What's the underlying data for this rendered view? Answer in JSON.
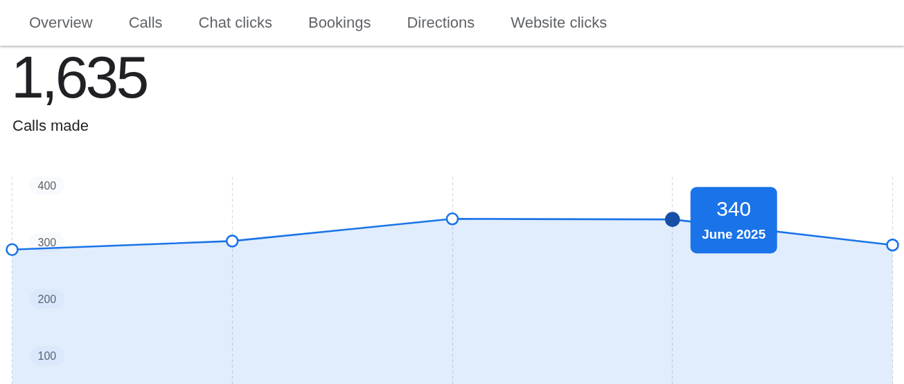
{
  "chart_data": {
    "type": "area",
    "title": "1,635",
    "subtitle": "Calls made",
    "annotations": [
      "Overview",
      "Calls",
      "Chat clicks",
      "Bookings",
      "Directions",
      "Website clicks"
    ],
    "categories": [
      null,
      null,
      null,
      null,
      null
    ],
    "series": [
      {
        "color": "#1a73e8",
        "values": [
          287,
          302,
          341,
          340,
          295
        ],
        "value_labels": [
          null,
          null,
          null,
          "340\nJune 2025",
          null
        ]
      }
    ],
    "ylim": [
      50,
      415
    ],
    "yticks": [
      100,
      200,
      300,
      400
    ],
    "grid": "x",
    "tick_labels": "y",
    "marker": "circle"
  }
}
